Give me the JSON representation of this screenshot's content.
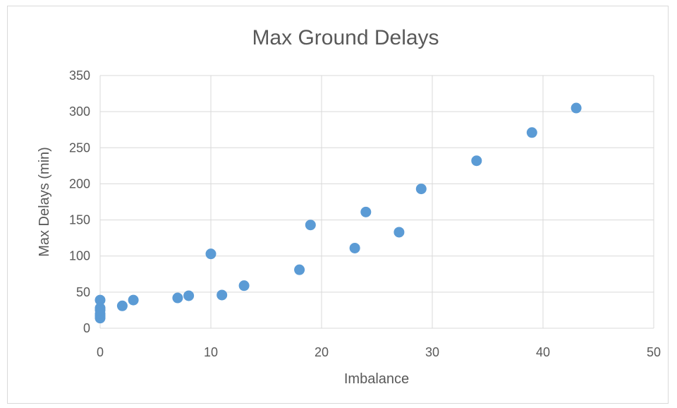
{
  "chart_data": {
    "type": "scatter",
    "title": "Max Ground Delays",
    "xlabel": "Imbalance",
    "ylabel": "Max Delays (min)",
    "xlim": [
      0,
      50
    ],
    "ylim": [
      0,
      350
    ],
    "xticks": [
      0,
      10,
      20,
      30,
      40,
      50
    ],
    "yticks": [
      0,
      50,
      100,
      150,
      200,
      250,
      300,
      350
    ],
    "grid": true,
    "legend": "none",
    "marker_color": "#5B9BD5",
    "grid_color": "#d9d9d9",
    "text_color": "#595959",
    "series": [
      {
        "points": [
          [
            0,
            14
          ],
          [
            0,
            17
          ],
          [
            0,
            20
          ],
          [
            0,
            25
          ],
          [
            0,
            28
          ],
          [
            0,
            39
          ],
          [
            2,
            31
          ],
          [
            3,
            39
          ],
          [
            7,
            42
          ],
          [
            8,
            45
          ],
          [
            10,
            103
          ],
          [
            11,
            46
          ],
          [
            13,
            59
          ],
          [
            18,
            81
          ],
          [
            19,
            143
          ],
          [
            23,
            111
          ],
          [
            24,
            161
          ],
          [
            27,
            133
          ],
          [
            29,
            193
          ],
          [
            34,
            232
          ],
          [
            39,
            271
          ],
          [
            43,
            305
          ]
        ]
      }
    ]
  }
}
